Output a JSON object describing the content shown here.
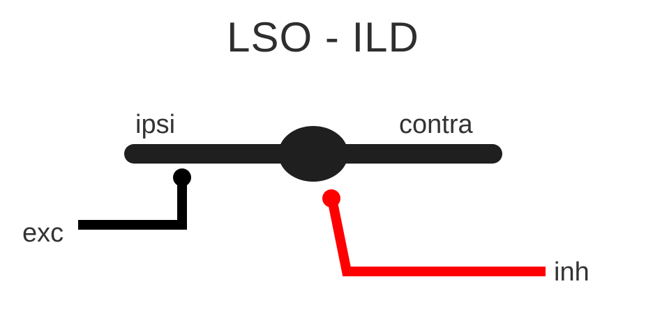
{
  "title": "LSO - ILD",
  "labels": {
    "ipsi": "ipsi",
    "contra": "contra",
    "exc": "exc",
    "inh": "inh"
  },
  "colors": {
    "neuron": "#1f1f1f",
    "excitatory": "#000000",
    "inhibitory": "#ff0000",
    "text": "#333333"
  }
}
